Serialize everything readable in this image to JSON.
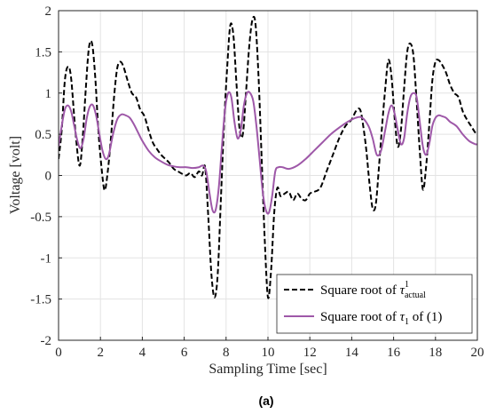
{
  "chart_data": {
    "type": "line",
    "xlabel": "Sampling Time [sec]",
    "ylabel": "Voltage [volt]",
    "xlim": [
      0,
      20
    ],
    "ylim": [
      -2,
      2
    ],
    "xticks": [
      0,
      2,
      4,
      6,
      8,
      10,
      12,
      14,
      16,
      18,
      20
    ],
    "yticks": [
      -2,
      -1.5,
      -1,
      -0.5,
      0,
      0.5,
      1,
      1.5,
      2
    ],
    "grid": true,
    "legend_position": "bottom-right",
    "caption": "(a)",
    "legend": [
      {
        "prefix": "Square root of ",
        "symbol": "τ",
        "sup": "1",
        "sub": "actual",
        "suffix": "",
        "color": "#000000",
        "dash": true
      },
      {
        "prefix": "Square root of ",
        "symbol": "τ",
        "sup": "",
        "sub": "1",
        "suffix": " of (1)",
        "color": "#9e58a8",
        "dash": false
      }
    ],
    "series": [
      {
        "color": "#000000",
        "style": "dashed",
        "x": [
          0,
          0.15,
          0.3,
          0.45,
          0.6,
          0.8,
          1.0,
          1.15,
          1.3,
          1.45,
          1.6,
          1.75,
          1.9,
          2.05,
          2.2,
          2.35,
          2.5,
          2.65,
          2.8,
          2.95,
          3.1,
          3.3,
          3.5,
          3.7,
          3.9,
          4.1,
          4.3,
          4.5,
          4.7,
          4.9,
          5.1,
          5.3,
          5.5,
          5.7,
          5.9,
          6.1,
          6.3,
          6.5,
          6.7,
          6.85,
          7.0,
          7.15,
          7.3,
          7.45,
          7.6,
          7.75,
          7.9,
          8.05,
          8.2,
          8.35,
          8.5,
          8.65,
          8.8,
          8.95,
          9.1,
          9.25,
          9.4,
          9.55,
          9.7,
          9.85,
          10.0,
          10.15,
          10.3,
          10.45,
          10.6,
          10.8,
          11.0,
          11.2,
          11.4,
          11.6,
          11.8,
          12.0,
          12.2,
          12.5,
          12.8,
          13.1,
          13.4,
          13.7,
          14.0,
          14.2,
          14.4,
          14.55,
          14.7,
          14.85,
          15.0,
          15.15,
          15.3,
          15.45,
          15.6,
          15.75,
          15.9,
          16.05,
          16.2,
          16.35,
          16.5,
          16.65,
          16.8,
          16.95,
          17.1,
          17.25,
          17.4,
          17.55,
          17.7,
          17.85,
          18.0,
          18.15,
          18.3,
          18.5,
          18.7,
          18.9,
          19.1,
          19.3,
          19.5,
          19.7,
          19.9,
          20.0
        ],
        "y": [
          0.2,
          0.55,
          1.15,
          1.32,
          1.18,
          0.55,
          0.12,
          0.45,
          1.05,
          1.55,
          1.6,
          1.2,
          0.55,
          0.1,
          -0.18,
          0.05,
          0.45,
          0.95,
          1.3,
          1.38,
          1.32,
          1.15,
          1.0,
          0.95,
          0.8,
          0.72,
          0.55,
          0.4,
          0.32,
          0.25,
          0.2,
          0.15,
          0.08,
          0.05,
          0.02,
          0.0,
          0.03,
          -0.02,
          0.05,
          0.0,
          0.1,
          -0.5,
          -1.2,
          -1.48,
          -1.2,
          -0.3,
          0.6,
          1.3,
          1.82,
          1.7,
          1.1,
          0.55,
          0.5,
          1.0,
          1.55,
          1.88,
          1.85,
          1.2,
          0.2,
          -0.8,
          -1.48,
          -1.15,
          -0.45,
          -0.15,
          -0.25,
          -0.22,
          -0.2,
          -0.3,
          -0.22,
          -0.28,
          -0.3,
          -0.22,
          -0.2,
          -0.15,
          0.05,
          0.25,
          0.45,
          0.6,
          0.68,
          0.78,
          0.8,
          0.6,
          0.3,
          -0.1,
          -0.4,
          -0.35,
          0.1,
          0.6,
          1.05,
          1.4,
          1.2,
          0.7,
          0.35,
          0.55,
          1.05,
          1.5,
          1.6,
          1.45,
          0.9,
          0.3,
          -0.17,
          0.1,
          0.6,
          1.15,
          1.38,
          1.4,
          1.35,
          1.25,
          1.1,
          1.0,
          0.95,
          0.78,
          0.68,
          0.6,
          0.52,
          0.5
        ]
      },
      {
        "color": "#9e58a8",
        "style": "solid",
        "x": [
          0,
          0.15,
          0.3,
          0.45,
          0.6,
          0.75,
          0.9,
          1.05,
          1.2,
          1.35,
          1.5,
          1.65,
          1.8,
          1.95,
          2.1,
          2.25,
          2.4,
          2.6,
          2.8,
          3.0,
          3.2,
          3.4,
          3.6,
          3.8,
          4.0,
          4.3,
          4.6,
          4.9,
          5.2,
          5.5,
          5.8,
          6.1,
          6.4,
          6.7,
          6.9,
          7.05,
          7.2,
          7.35,
          7.5,
          7.65,
          7.8,
          7.95,
          8.1,
          8.25,
          8.4,
          8.55,
          8.7,
          8.85,
          9.0,
          9.15,
          9.3,
          9.45,
          9.6,
          9.75,
          9.9,
          10.05,
          10.2,
          10.35,
          10.5,
          10.7,
          11.0,
          11.4,
          11.8,
          12.2,
          12.6,
          13.0,
          13.4,
          13.8,
          14.2,
          14.5,
          14.8,
          15.0,
          15.2,
          15.4,
          15.6,
          15.75,
          15.9,
          16.05,
          16.2,
          16.35,
          16.5,
          16.65,
          16.8,
          16.95,
          17.1,
          17.25,
          17.4,
          17.55,
          17.7,
          17.85,
          18.0,
          18.15,
          18.3,
          18.5,
          18.7,
          19.0,
          19.3,
          19.6,
          19.9,
          20.0
        ],
        "y": [
          0.35,
          0.6,
          0.8,
          0.85,
          0.78,
          0.6,
          0.42,
          0.33,
          0.45,
          0.7,
          0.84,
          0.85,
          0.72,
          0.5,
          0.3,
          0.2,
          0.25,
          0.5,
          0.68,
          0.74,
          0.73,
          0.7,
          0.62,
          0.52,
          0.42,
          0.3,
          0.22,
          0.17,
          0.13,
          0.11,
          0.1,
          0.1,
          0.09,
          0.1,
          0.12,
          0.05,
          -0.2,
          -0.42,
          -0.42,
          -0.15,
          0.35,
          0.8,
          1.0,
          0.95,
          0.65,
          0.45,
          0.55,
          0.85,
          1.0,
          1.0,
          0.9,
          0.6,
          0.2,
          -0.2,
          -0.42,
          -0.45,
          -0.25,
          0.05,
          0.1,
          0.1,
          0.08,
          0.12,
          0.2,
          0.3,
          0.4,
          0.5,
          0.58,
          0.65,
          0.7,
          0.7,
          0.6,
          0.45,
          0.25,
          0.3,
          0.55,
          0.75,
          0.85,
          0.75,
          0.55,
          0.38,
          0.45,
          0.75,
          0.95,
          1.0,
          0.95,
          0.65,
          0.35,
          0.25,
          0.38,
          0.6,
          0.7,
          0.73,
          0.72,
          0.7,
          0.65,
          0.6,
          0.5,
          0.42,
          0.38,
          0.38
        ]
      }
    ]
  }
}
